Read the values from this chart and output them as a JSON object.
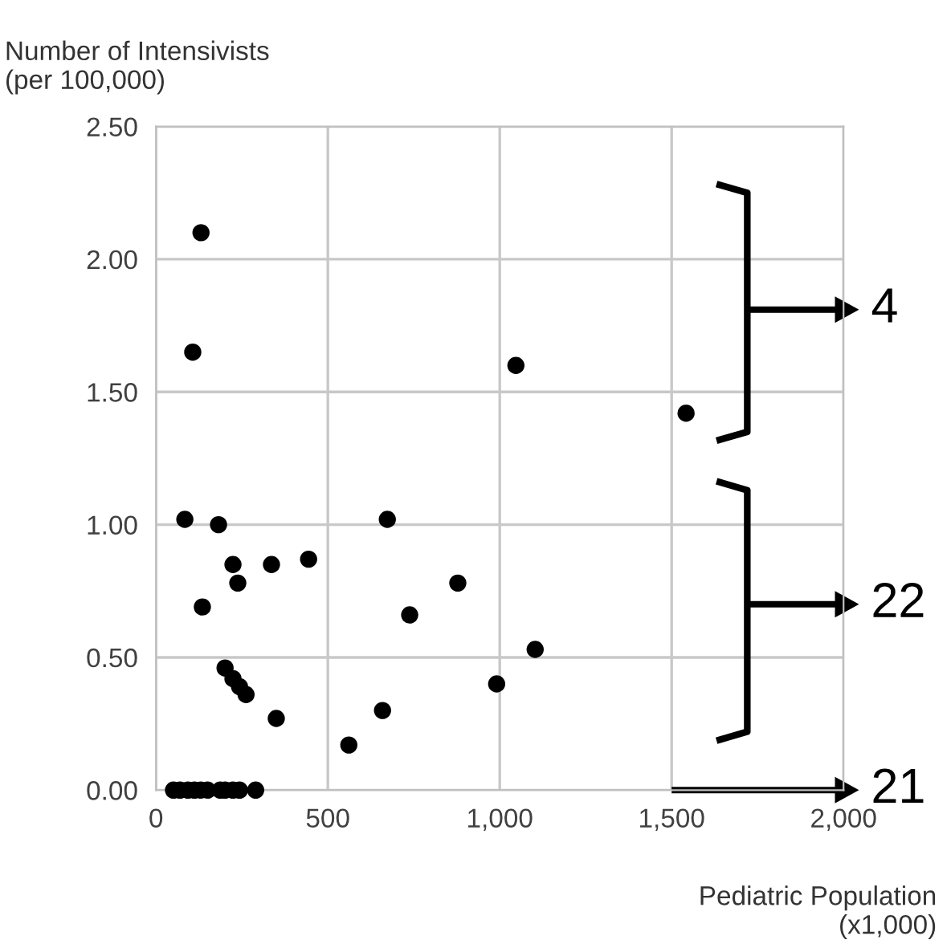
{
  "chart_data": {
    "type": "scatter",
    "ylabel": "Number of Intensivists\n(per 100,000)",
    "xlabel": "Pediatric Population\n(x1,000)",
    "series": [
      {
        "color": "#000000",
        "x": [
          131,
          84,
          182,
          673,
          107,
          1047,
          1542,
          224,
          336,
          444,
          238,
          878,
          135,
          738,
          1103,
          991,
          201,
          224,
          243,
          262,
          350,
          659,
          561,
          51,
          70,
          93,
          112,
          131,
          150,
          187,
          201,
          224,
          243,
          290
        ],
        "values": [
          2.1,
          1.02,
          1.0,
          1.02,
          1.65,
          1.6,
          1.42,
          0.85,
          0.85,
          0.87,
          0.78,
          0.78,
          0.69,
          0.66,
          0.53,
          0.4,
          0.46,
          0.42,
          0.39,
          0.36,
          0.27,
          0.3,
          0.17,
          0,
          0,
          0,
          0,
          0,
          0,
          0,
          0,
          0,
          0,
          0
        ]
      }
    ],
    "xlim": [
      0,
      2000
    ],
    "xticks": [
      0,
      500,
      {
        "value": 1000,
        "label": "1,000"
      },
      {
        "value": 1500,
        "label": "1,500"
      },
      {
        "value": 2000,
        "label": "2,000"
      }
    ],
    "ylim": [
      0,
      2.5
    ],
    "yticks": [
      {
        "value": 0,
        "label": "0.00"
      },
      {
        "value": 0.5,
        "label": "0.50"
      },
      {
        "value": 1,
        "label": "1.00"
      },
      {
        "value": 1.5,
        "label": "1.50"
      },
      {
        "value": 2,
        "label": "2.00"
      },
      {
        "value": 2.5,
        "label": "2.50"
      }
    ],
    "grid": true,
    "marker": "circle",
    "annotations": [
      "4",
      "22",
      "21"
    ]
  }
}
